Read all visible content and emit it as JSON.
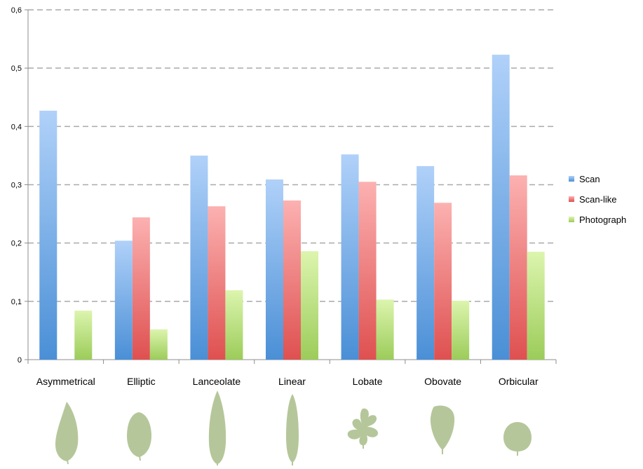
{
  "chart_data": {
    "type": "bar",
    "categories": [
      "Asymmetrical",
      "Elliptic",
      "Lanceolate",
      "Linear",
      "Lobate",
      "Obovate",
      "Orbicular"
    ],
    "series": [
      {
        "name": "Scan",
        "values": [
          0.427,
          0.204,
          0.35,
          0.309,
          0.352,
          0.332,
          0.523
        ]
      },
      {
        "name": "Scan-like",
        "values": [
          0,
          0.244,
          0.263,
          0.273,
          0.305,
          0.269,
          0.316
        ]
      },
      {
        "name": "Photograph",
        "values": [
          0.084,
          0.052,
          0.119,
          0.186,
          0.103,
          0.101,
          0.185
        ]
      }
    ],
    "ylim": [
      0,
      0.6
    ],
    "yticks": [
      "0",
      "0,1",
      "0,2",
      "0,3",
      "0,4",
      "0,5",
      "0,6"
    ],
    "grid": true,
    "legend_position": "right",
    "colors": {
      "Scan": [
        "#b0d1f9",
        "#4a8fd6"
      ],
      "Scan-like": [
        "#fcb1b1",
        "#df5050"
      ],
      "Photograph": [
        "#dcf5ae",
        "#9ccc5a"
      ]
    },
    "leaf_icons": [
      "asymmetrical-leaf-icon",
      "elliptic-leaf-icon",
      "lanceolate-leaf-icon",
      "linear-leaf-icon",
      "lobate-leaf-icon",
      "obovate-leaf-icon",
      "orbicular-leaf-icon"
    ],
    "leaf_color": "#b5c79a"
  }
}
